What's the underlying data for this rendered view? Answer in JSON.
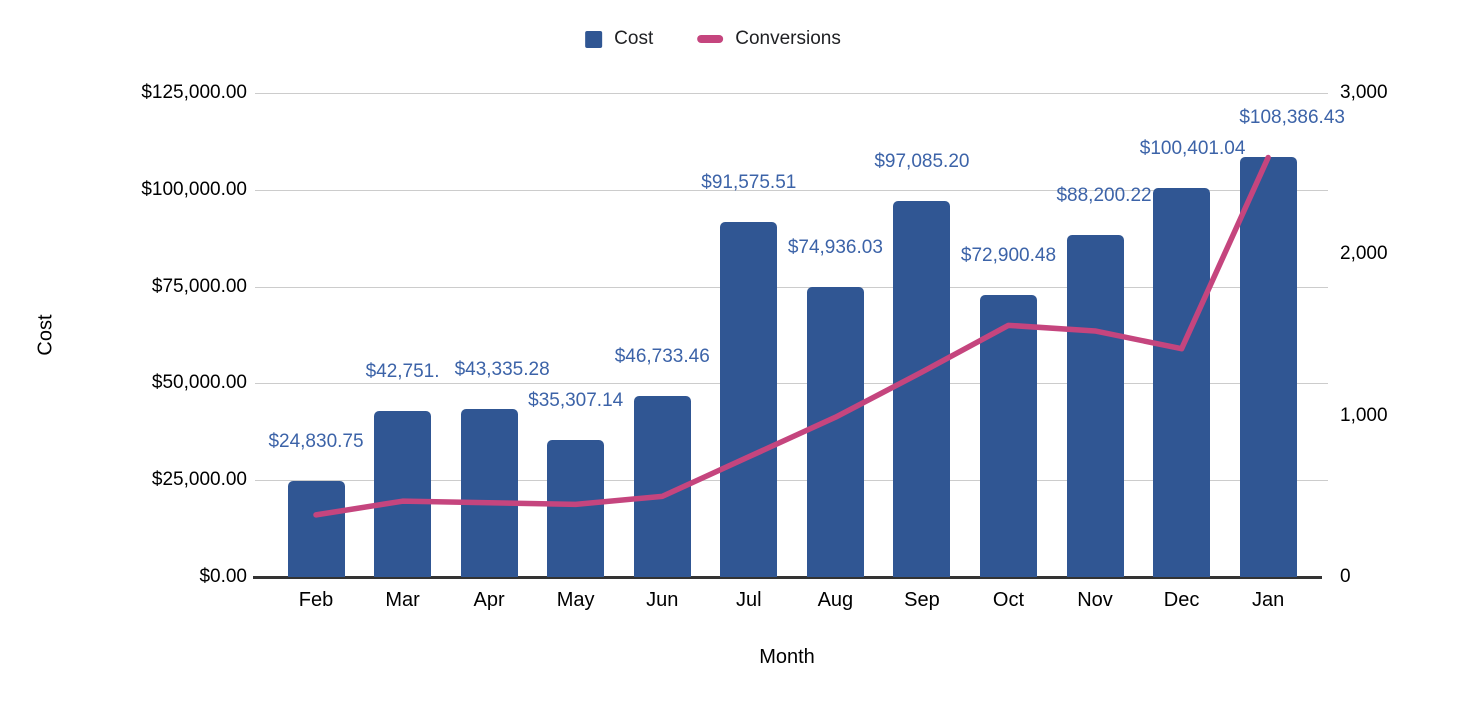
{
  "chart_data": {
    "type": "combo",
    "title": "",
    "xlabel": "Month",
    "ylabel_left": "Cost",
    "categories": [
      "Feb",
      "Mar",
      "Apr",
      "May",
      "Jun",
      "Jul",
      "Aug",
      "Sep",
      "Oct",
      "Nov",
      "Dec",
      "Jan"
    ],
    "series": [
      {
        "name": "Cost",
        "type": "bar",
        "axis": "left",
        "color": "#305693",
        "label_color": "#3C63A8",
        "values": [
          24830.75,
          42751,
          43335.28,
          35307.14,
          46733.46,
          91575.51,
          74936.03,
          97085.2,
          72900.48,
          88200.22,
          100401.04,
          108386.43
        ],
        "labels": [
          "$24,830.75",
          "$42,751.",
          "$43,335.28",
          "$35,307.14",
          "$46,733.46",
          "$91,575.51",
          "$74,936.03",
          "$97,085.20",
          "$72,900.48",
          "$88,200.22",
          "$100,401.04",
          "$108,386.43"
        ]
      },
      {
        "name": "Conversions",
        "type": "line",
        "axis": "right",
        "color": "#C5457E",
        "values": [
          385,
          470,
          460,
          450,
          500,
          745,
          990,
          1270,
          1560,
          1525,
          1415,
          2600
        ]
      }
    ],
    "y_left": {
      "lim": [
        0,
        125000
      ],
      "ticks": [
        "$0.00",
        "$25,000.00",
        "$50,000.00",
        "$75,000.00",
        "$100,000.00",
        "$125,000.00"
      ]
    },
    "y_right": {
      "lim": [
        0,
        3000
      ],
      "ticks": [
        "0",
        "1,000",
        "2,000",
        "3,000"
      ]
    },
    "grid": true,
    "legend_position": "top",
    "gridline_color": "#cccccc",
    "axis_line_color": "#333333"
  }
}
